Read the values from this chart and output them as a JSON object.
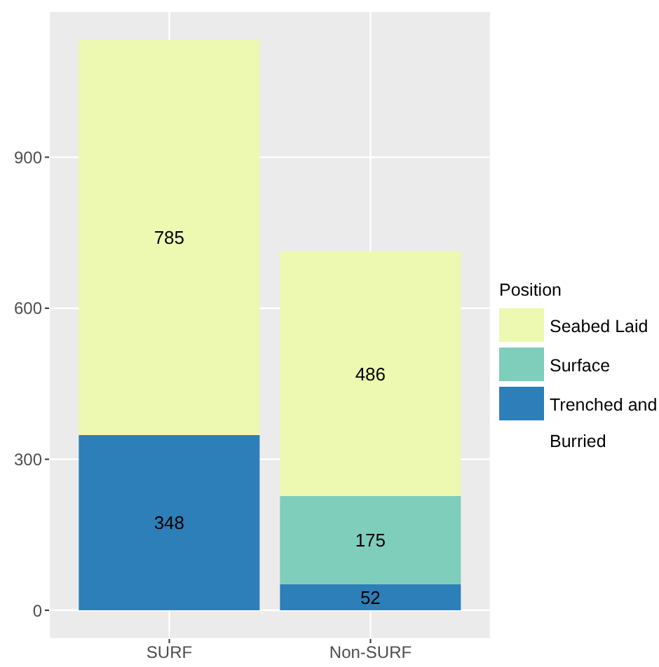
{
  "chart_data": {
    "type": "bar",
    "stacked": true,
    "categories": [
      "SURF",
      "Non-SURF"
    ],
    "series": [
      {
        "name": "Trenched and Burried",
        "color": "#2c7fb8",
        "values": [
          348,
          52
        ]
      },
      {
        "name": "Surface",
        "color": "#7fcdbb",
        "values": [
          null,
          175
        ]
      },
      {
        "name": "Seabed Laid",
        "color": "#edf8b1",
        "values": [
          785,
          486
        ]
      }
    ],
    "ylim": [
      -57,
      1190
    ],
    "yticks": [
      0,
      300,
      600,
      900
    ],
    "grid": true,
    "legend": "right",
    "legend_title": "Position",
    "data_labels": true
  }
}
